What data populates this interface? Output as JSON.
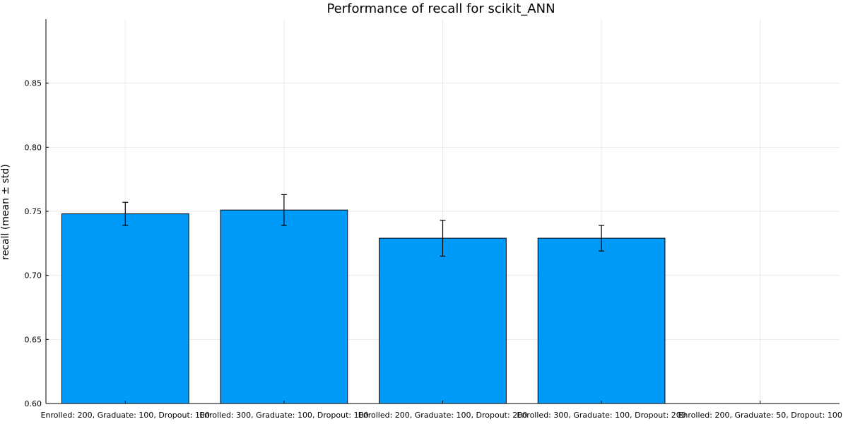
{
  "chart_data": {
    "type": "bar",
    "title": "Performance of recall for scikit_ANN",
    "ylabel": "recall (mean ± std)",
    "xlabel": "",
    "ylim": [
      0.6,
      0.9
    ],
    "yticks": [
      "0.60",
      "0.65",
      "0.70",
      "0.75",
      "0.80",
      "0.85"
    ],
    "grid": true,
    "bar_color": "#009af9",
    "categories": [
      "Enrolled: 200, Graduate: 100, Dropout: 100",
      "Enrolled: 300, Graduate: 100, Dropout: 100",
      "Enrolled: 200, Graduate: 100, Dropout: 200",
      "Enrolled: 300, Graduate: 100, Dropout: 200",
      "Enrolled: 200, Graduate: 50, Dropout: 100"
    ],
    "values": [
      0.748,
      0.751,
      0.729,
      0.729,
      null
    ],
    "errors": [
      0.009,
      0.012,
      0.014,
      0.01,
      null
    ]
  }
}
